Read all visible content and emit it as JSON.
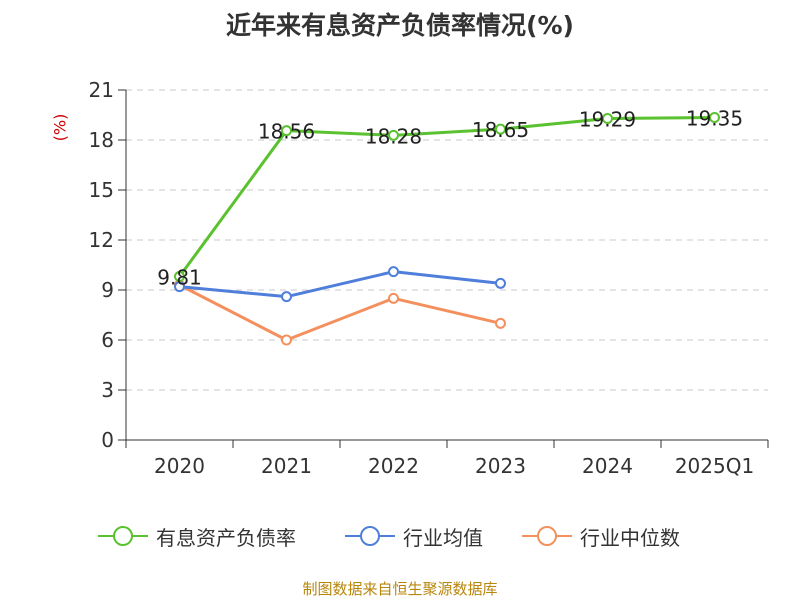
{
  "chart_data": {
    "type": "line",
    "title": "近年来有息资产负债率情况(%)",
    "ylabel": "(%)",
    "categories": [
      "2020",
      "2021",
      "2022",
      "2023",
      "2024",
      "2025Q1"
    ],
    "yticks": [
      "0",
      "3",
      "6",
      "9",
      "12",
      "15",
      "18",
      "21"
    ],
    "ylim": [
      0,
      21
    ],
    "grid": true,
    "legend_position": "bottom",
    "series": [
      {
        "name": "有息资产负债率",
        "color": "#5ac12f",
        "values": [
          9.81,
          18.56,
          18.28,
          18.65,
          19.29,
          19.35
        ],
        "labels": [
          "9.81",
          "18.56",
          "18.28",
          "18.65",
          "19.29",
          "19.35"
        ]
      },
      {
        "name": "行业均值",
        "color": "#4f7fdb",
        "values": [
          9.2,
          8.6,
          10.1,
          9.4,
          null,
          null
        ]
      },
      {
        "name": "行业中位数",
        "color": "#f4905e",
        "values": [
          9.3,
          6.0,
          8.5,
          7.0,
          null,
          null
        ]
      }
    ]
  },
  "source_text": "制图数据来自恒生聚源数据库"
}
